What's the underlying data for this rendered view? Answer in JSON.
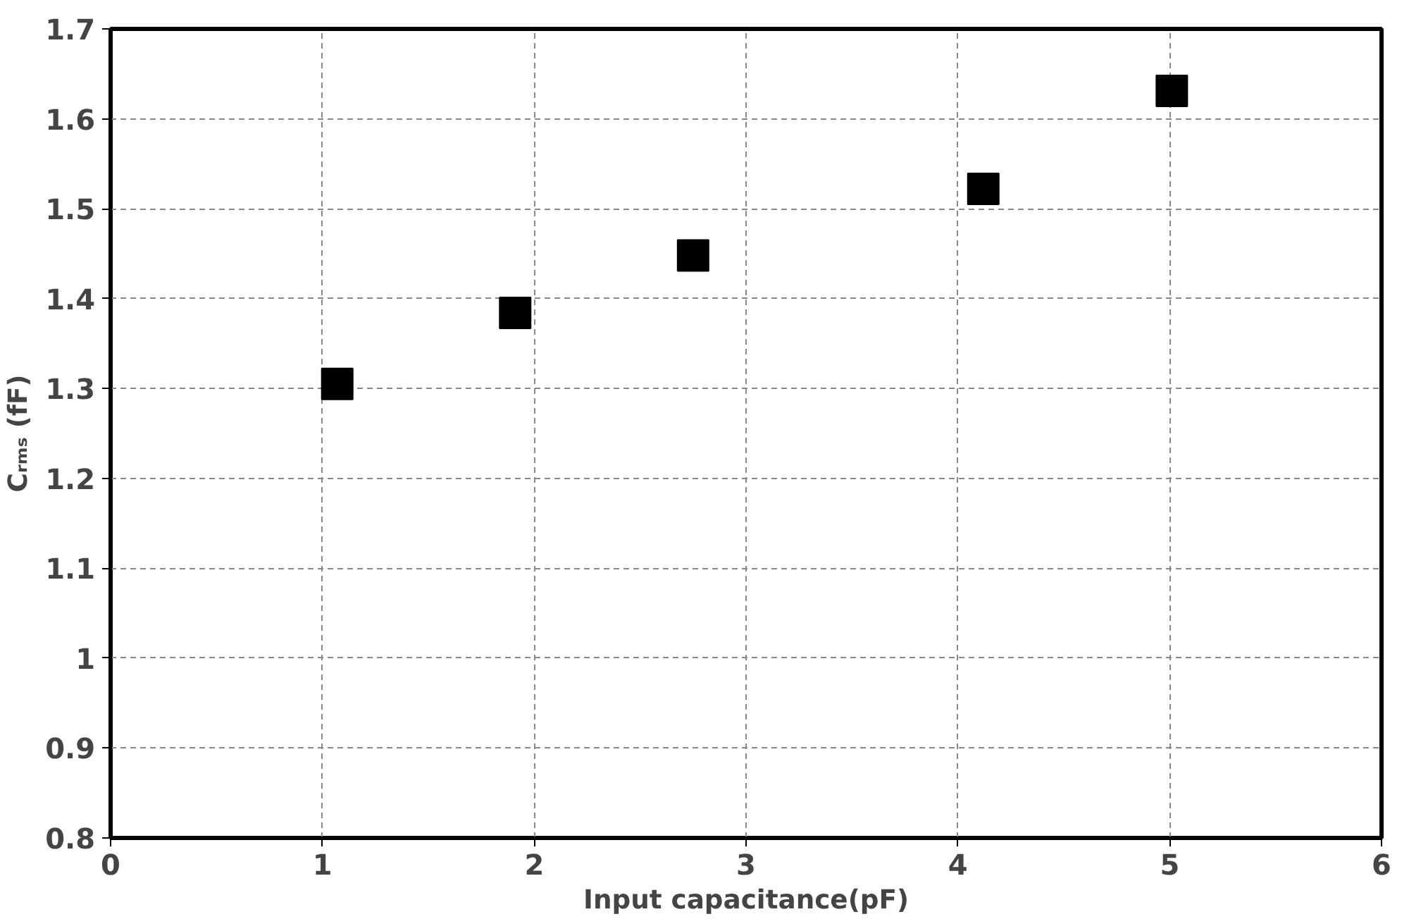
{
  "chart_data": {
    "type": "scatter",
    "xlabel": "Input capacitance(pF)",
    "ylabel": "Cᵣₘₛ (fF)",
    "x": [
      1.07,
      1.91,
      2.75,
      4.12,
      5.01
    ],
    "series": [
      {
        "color": "#000000",
        "values": [
          1.305,
          1.384,
          1.448,
          1.522,
          1.631
        ]
      }
    ],
    "xlim": [
      0,
      6
    ],
    "xticks": [
      0,
      1,
      2,
      3,
      4,
      5,
      6
    ],
    "ylim": [
      0.8,
      1.7
    ],
    "yticks": [
      0.8,
      0.9,
      1.0,
      1.1,
      1.2,
      1.3,
      1.4,
      1.5,
      1.6,
      1.7
    ],
    "grid": true,
    "marker": "square"
  }
}
